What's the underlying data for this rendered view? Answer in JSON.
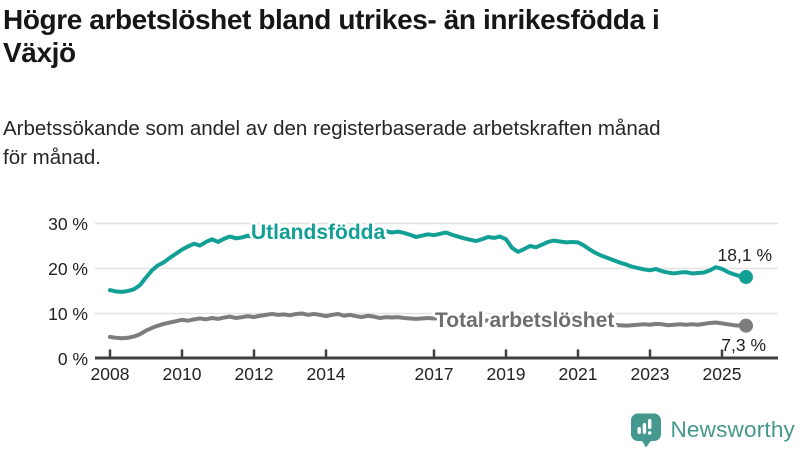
{
  "header": {
    "title": "Högre arbetslöshet bland utrikes- än inrikesfödda i Växjö",
    "title_lines": [
      "Högre arbetslöshet bland utrikes- än inrikesfödda i",
      "Växjö"
    ],
    "subtitle": "Arbetssökande som andel av den registerbaserade arbetskraften månad för månad.",
    "subtitle_lines": [
      "Arbetssökande som andel av den registerbaserade arbetskraften månad",
      "för månad."
    ]
  },
  "colors": {
    "teal": "#12a096",
    "gray": "#7d7d7d",
    "gray_label": "#6e6e6e",
    "grid": "#e2e2e2",
    "axis": "#3f3f3f",
    "tick_text": "#222222",
    "logo_teal": "#45988e",
    "background": "#ffffff"
  },
  "chart_data": {
    "type": "line",
    "title": "",
    "xlabel": "",
    "ylabel": "",
    "grid": true,
    "ylim": [
      0,
      30
    ],
    "x_start_year": 2008,
    "x_step_months": 2,
    "y_ticks": [
      {
        "v": 0,
        "label": "0 %"
      },
      {
        "v": 10,
        "label": "10 %"
      },
      {
        "v": 20,
        "label": "20 %"
      },
      {
        "v": 30,
        "label": "30 %"
      }
    ],
    "x_ticks": [
      {
        "year": 2008,
        "label": "2008"
      },
      {
        "year": 2010,
        "label": "2010"
      },
      {
        "year": 2012,
        "label": "2012"
      },
      {
        "year": 2014,
        "label": "2014"
      },
      {
        "year": 2017,
        "label": "2017"
      },
      {
        "year": 2019,
        "label": "2019"
      },
      {
        "year": 2021,
        "label": "2021"
      },
      {
        "year": 2023,
        "label": "2023"
      },
      {
        "year": 2025,
        "label": "2025"
      }
    ],
    "series": [
      {
        "name": "Utlandsfödda",
        "color": "#12a096",
        "end_label": "18,1 %",
        "end_value": 18.1,
        "values": [
          15.2,
          14.9,
          14.8,
          15.0,
          15.4,
          16.3,
          18.0,
          19.6,
          20.7,
          21.4,
          22.4,
          23.3,
          24.2,
          24.9,
          25.5,
          25.1,
          25.9,
          26.5,
          25.9,
          26.6,
          27.1,
          26.7,
          26.9,
          27.3,
          27.0,
          27.5,
          27.8,
          27.6,
          28.0,
          28.2,
          28.0,
          28.3,
          28.5,
          28.2,
          28.5,
          28.7,
          28.4,
          28.7,
          28.9,
          28.5,
          28.8,
          28.6,
          28.3,
          28.6,
          28.4,
          28.1,
          28.3,
          28.0,
          28.2,
          27.9,
          27.5,
          27.0,
          27.3,
          27.6,
          27.4,
          27.7,
          28.0,
          27.5,
          27.1,
          26.7,
          26.4,
          26.1,
          26.5,
          27.0,
          26.8,
          27.1,
          26.5,
          24.6,
          23.7,
          24.3,
          25.0,
          24.7,
          25.3,
          25.9,
          26.2,
          26.0,
          25.8,
          25.9,
          25.8,
          25.1,
          24.2,
          23.4,
          22.8,
          22.3,
          21.8,
          21.3,
          20.9,
          20.4,
          20.1,
          19.8,
          19.6,
          19.9,
          19.4,
          19.1,
          18.9,
          19.1,
          19.2,
          18.9,
          19.0,
          19.1,
          19.6,
          20.3,
          19.9,
          19.2,
          18.7,
          18.3,
          18.1
        ]
      },
      {
        "name": "Total arbetslöshet",
        "color": "#7d7d7d",
        "end_label": "7,3 %",
        "end_value": 7.3,
        "values": [
          4.8,
          4.6,
          4.5,
          4.6,
          4.9,
          5.4,
          6.2,
          6.8,
          7.3,
          7.7,
          8.0,
          8.3,
          8.6,
          8.4,
          8.7,
          8.9,
          8.7,
          9.0,
          8.8,
          9.1,
          9.3,
          9.0,
          9.2,
          9.4,
          9.2,
          9.5,
          9.7,
          9.9,
          9.7,
          9.8,
          9.6,
          9.9,
          10.0,
          9.7,
          9.9,
          9.7,
          9.4,
          9.7,
          9.9,
          9.5,
          9.7,
          9.4,
          9.2,
          9.5,
          9.3,
          9.0,
          9.2,
          9.1,
          9.2,
          9.0,
          8.9,
          8.8,
          8.9,
          9.0,
          8.9,
          9.0,
          8.8,
          8.6,
          8.6,
          8.4,
          8.3,
          8.1,
          8.3,
          8.5,
          8.4,
          8.2,
          8.1,
          7.9,
          8.0,
          8.2,
          8.1,
          8.3,
          8.5,
          8.9,
          9.1,
          9.0,
          8.8,
          8.9,
          8.7,
          8.4,
          8.1,
          7.9,
          7.7,
          7.6,
          7.5,
          7.4,
          7.3,
          7.4,
          7.5,
          7.6,
          7.5,
          7.7,
          7.6,
          7.4,
          7.5,
          7.6,
          7.5,
          7.6,
          7.5,
          7.7,
          7.9,
          8.0,
          7.8,
          7.6,
          7.4,
          7.3,
          7.3
        ]
      }
    ],
    "legend_position": "inline-on-line"
  },
  "footer": {
    "brand": "Newsworthy"
  }
}
